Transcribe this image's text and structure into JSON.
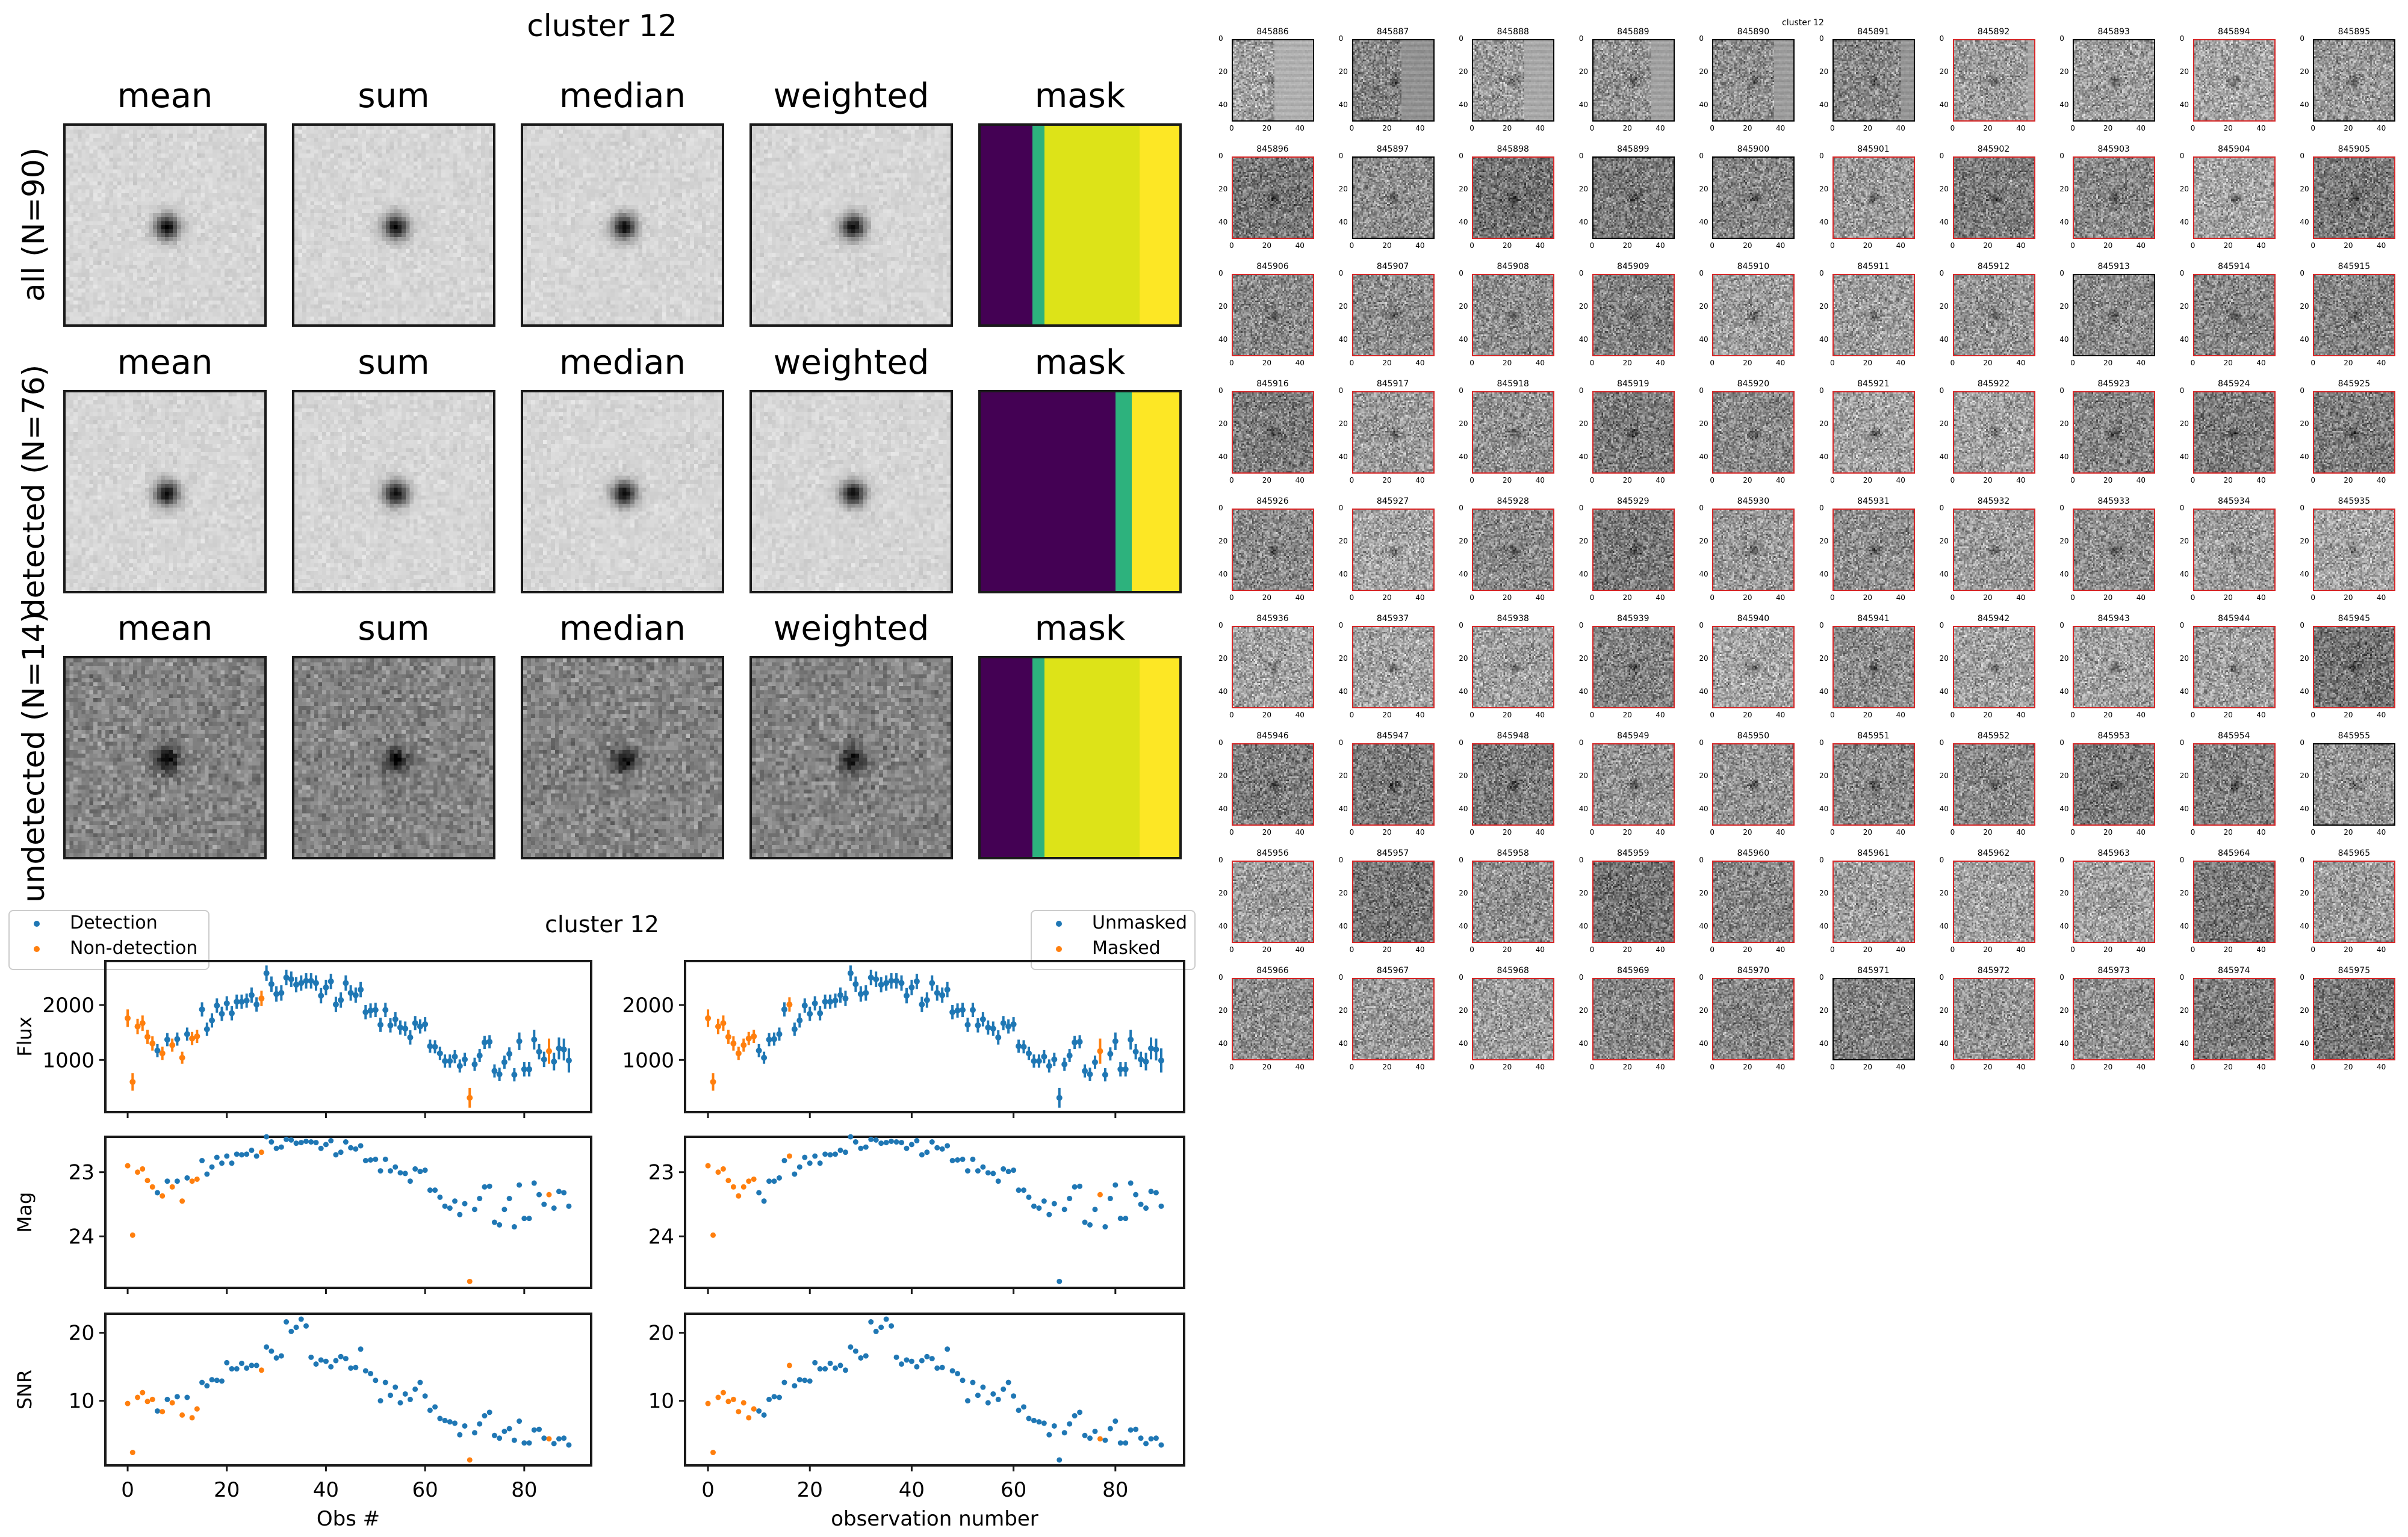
{
  "stack_figure": {
    "title": "cluster 12",
    "column_titles": [
      "mean",
      "sum",
      "median",
      "weighted",
      "mask"
    ],
    "rows": [
      {
        "label": "all (N=90)",
        "darkness": 0.22,
        "noise": 0.06,
        "mask_segments": [
          {
            "color": "#440154",
            "fraction": 0.26
          },
          {
            "color": "#2db27d",
            "fraction": 0.06
          },
          {
            "color": "#dde318",
            "fraction": 0.48
          },
          {
            "color": "#fde725",
            "fraction": 0.2
          }
        ]
      },
      {
        "label": "detected (N=76)",
        "darkness": 0.2,
        "noise": 0.06,
        "mask_segments": [
          {
            "color": "#440154",
            "fraction": 0.68
          },
          {
            "color": "#2db27d",
            "fraction": 0.08
          },
          {
            "color": "#fde725",
            "fraction": 0.24
          }
        ]
      },
      {
        "label": "undetected (N=14)",
        "darkness": 0.5,
        "noise": 0.16,
        "mask_segments": [
          {
            "color": "#440154",
            "fraction": 0.26
          },
          {
            "color": "#2db27d",
            "fraction": 0.06
          },
          {
            "color": "#dde318",
            "fraction": 0.48
          },
          {
            "color": "#fde725",
            "fraction": 0.2
          }
        ]
      }
    ]
  },
  "lightcurve_figure": {
    "title": "cluster 12",
    "left_legend": [
      "Detection",
      "Non-detection"
    ],
    "right_legend": [
      "Unmasked",
      "Masked"
    ],
    "left_xlabel": "Obs #",
    "right_xlabel": "observation number",
    "panels": [
      {
        "ylabel": "Flux",
        "yticks": [
          1000,
          2000
        ],
        "ylim": [
          50,
          2800
        ]
      },
      {
        "ylabel": "Mag",
        "yticks": [
          23,
          24
        ],
        "ylim": [
          24.8,
          22.45
        ]
      },
      {
        "ylabel": "SNR",
        "yticks": [
          10,
          20
        ],
        "ylim": [
          0.5,
          22.8
        ]
      }
    ],
    "xticks": [
      0,
      20,
      40,
      60,
      80
    ],
    "xlim": [
      -4.5,
      93.5
    ]
  },
  "chart_data": {
    "type": "scatter",
    "title": "cluster 12",
    "x": "observation index 0-89",
    "colors": {
      "blue": "#1f77b4",
      "orange": "#ff7f0e"
    },
    "flux": [
      1760,
      600,
      1610,
      1670,
      1420,
      1300,
      1170,
      1120,
      1370,
      1270,
      1380,
      1040,
      1470,
      1390,
      1430,
      1920,
      1560,
      1720,
      1990,
      1840,
      2030,
      1850,
      2060,
      2060,
      2080,
      2180,
      2010,
      2120,
      2580,
      2380,
      2200,
      2220,
      2500,
      2470,
      2370,
      2400,
      2440,
      2440,
      2400,
      2170,
      2320,
      2430,
      2010,
      2090,
      2400,
      2220,
      2180,
      2280,
      1870,
      1900,
      1910,
      1640,
      1910,
      1630,
      1740,
      1590,
      1570,
      1410,
      1670,
      1610,
      1650,
      1250,
      1240,
      1120,
      980,
      980,
      1060,
      890,
      1010,
      310,
      920,
      1080,
      1320,
      1330,
      800,
      740,
      960,
      1110,
      730,
      1340,
      830,
      830,
      1370,
      1150,
      1010,
      1160,
      970,
      1210,
      1190,
      990
    ],
    "flux_err": [
      160,
      160,
      140,
      140,
      130,
      130,
      120,
      120,
      120,
      120,
      120,
      110,
      120,
      120,
      120,
      130,
      120,
      130,
      130,
      130,
      130,
      130,
      130,
      130,
      130,
      140,
      130,
      140,
      140,
      140,
      140,
      140,
      140,
      140,
      140,
      140,
      140,
      140,
      140,
      140,
      140,
      140,
      140,
      140,
      140,
      140,
      140,
      140,
      130,
      130,
      130,
      130,
      130,
      130,
      130,
      130,
      130,
      130,
      130,
      130,
      130,
      120,
      120,
      120,
      120,
      120,
      120,
      120,
      120,
      180,
      120,
      120,
      120,
      120,
      120,
      120,
      120,
      120,
      120,
      160,
      130,
      130,
      180,
      140,
      140,
      230,
      160,
      200,
      200,
      220
    ],
    "mag": [
      22.9,
      23.98,
      23.0,
      22.95,
      23.13,
      23.23,
      23.32,
      23.37,
      23.14,
      23.23,
      23.14,
      23.45,
      23.09,
      23.14,
      23.11,
      22.82,
      23.03,
      22.92,
      22.77,
      22.86,
      22.75,
      22.86,
      22.72,
      22.73,
      22.72,
      22.66,
      22.75,
      22.69,
      22.45,
      22.53,
      22.63,
      22.61,
      22.49,
      22.5,
      22.55,
      22.54,
      22.52,
      22.53,
      22.54,
      22.63,
      22.57,
      22.51,
      22.73,
      22.69,
      22.53,
      22.62,
      22.64,
      22.59,
      22.82,
      22.81,
      22.8,
      22.98,
      22.8,
      22.98,
      22.92,
      23.01,
      23.02,
      23.14,
      22.95,
      22.99,
      22.97,
      23.28,
      23.28,
      23.39,
      23.53,
      23.56,
      23.45,
      23.66,
      23.49,
      24.7,
      23.58,
      23.41,
      23.23,
      23.22,
      23.78,
      23.82,
      23.58,
      23.41,
      23.85,
      23.2,
      23.72,
      23.72,
      23.17,
      23.35,
      23.5,
      23.35,
      23.56,
      23.3,
      23.32,
      23.53
    ],
    "snr": [
      9.6,
      2.4,
      10.5,
      11.2,
      9.9,
      10.2,
      8.5,
      8.4,
      10.2,
      9.7,
      10.6,
      7.9,
      10.5,
      7.5,
      8.8,
      12.7,
      12.2,
      13.1,
      13.0,
      12.9,
      15.6,
      14.7,
      14.7,
      15.5,
      14.8,
      15.2,
      15.2,
      14.5,
      17.9,
      17.3,
      16.3,
      16.6,
      21.6,
      20.2,
      20.8,
      22.0,
      21.0,
      16.4,
      15.4,
      16.0,
      15.8,
      15.0,
      15.9,
      16.5,
      16.2,
      14.8,
      14.9,
      17.6,
      14.4,
      14.0,
      13.0,
      10.0,
      12.7,
      10.8,
      12.0,
      9.7,
      11.0,
      10.2,
      11.7,
      12.7,
      10.7,
      8.6,
      9.1,
      7.4,
      7.1,
      6.9,
      6.7,
      5.0,
      6.3,
      1.3,
      5.3,
      6.6,
      7.8,
      8.3,
      4.9,
      4.5,
      5.5,
      5.9,
      4.2,
      7.0,
      3.8,
      3.8,
      5.7,
      5.8,
      4.5,
      4.4,
      3.7,
      4.4,
      4.5,
      3.5
    ],
    "left_orange_indices": [
      0,
      1,
      2,
      3,
      4,
      5,
      7,
      9,
      11,
      13,
      14,
      27,
      69,
      85
    ],
    "right_order": [
      0,
      1,
      2,
      3,
      4,
      5,
      7,
      9,
      13,
      14,
      6,
      11,
      8,
      10,
      12,
      15,
      26,
      16,
      17,
      18,
      19,
      20,
      21,
      22,
      23,
      24,
      25,
      27,
      28,
      29,
      30,
      31,
      32,
      33,
      34,
      35,
      36,
      37,
      38,
      39,
      40,
      41,
      42,
      43,
      44,
      45,
      46,
      47,
      48,
      49,
      50,
      51,
      52,
      53,
      54,
      55,
      56,
      57,
      58,
      59,
      60,
      61,
      62,
      63,
      64,
      65,
      66,
      67,
      68,
      69,
      70,
      71,
      72,
      73,
      74,
      75,
      76,
      85,
      78,
      77,
      79,
      80,
      81,
      82,
      83,
      84,
      86,
      87,
      88,
      89
    ],
    "right_orange_positions": [
      0,
      1,
      2,
      3,
      4,
      5,
      6,
      7,
      8,
      9,
      16,
      77
    ]
  },
  "thumbnail_grid": {
    "title": "cluster 12",
    "first_id": 845886,
    "count": 90,
    "columns": 10,
    "axis_ticks": [
      0,
      20,
      40
    ],
    "masked_indices": [
      0,
      1,
      2,
      3,
      4,
      5,
      7,
      9,
      11,
      13,
      14,
      27,
      69,
      85
    ],
    "streak_indices": [
      0,
      1,
      2,
      3,
      4,
      5,
      6
    ],
    "detected_border_color": "#d62728"
  }
}
